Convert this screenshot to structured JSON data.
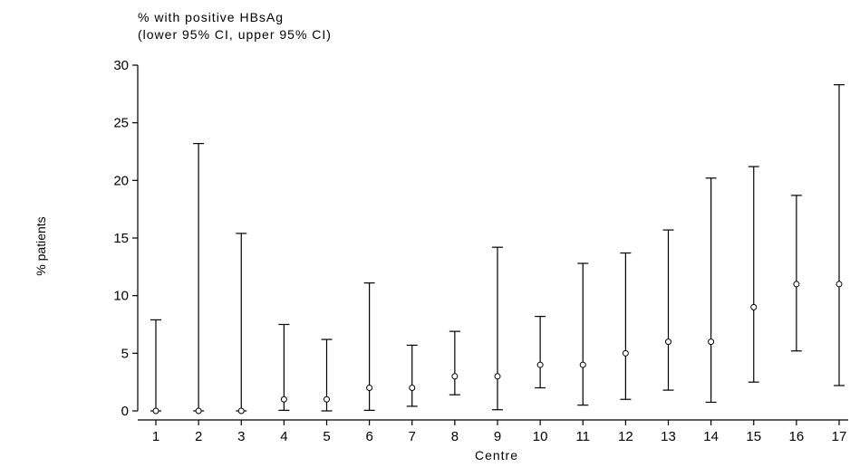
{
  "chart_data": {
    "type": "scatter",
    "title_lines": [
      "% with positive HBsAg",
      "(lower 95% CI, upper 95% CI)"
    ],
    "xlabel": "Centre",
    "ylabel": "% patients",
    "ylim": [
      0,
      30
    ],
    "y_ticks": [
      0,
      5,
      10,
      15,
      20,
      25,
      30
    ],
    "y_tick_labels": [
      "0",
      "5",
      "10",
      "15",
      "20",
      "25",
      "30"
    ],
    "grid": false,
    "series": [
      {
        "name": "",
        "marker": "open-circle",
        "x": [
          "1",
          "2",
          "3",
          "4",
          "5",
          "6",
          "7",
          "8",
          "9",
          "10",
          "11",
          "12",
          "13",
          "14",
          "15",
          "16",
          "17"
        ],
        "values": [
          0,
          0,
          0,
          1,
          1,
          2,
          2,
          3,
          3,
          4,
          4,
          5,
          6,
          6,
          9,
          11,
          11
        ],
        "lower": [
          0,
          0,
          0,
          0.05,
          0,
          0.05,
          0.4,
          1.4,
          0.1,
          2.0,
          0.5,
          1.0,
          1.8,
          0.75,
          2.5,
          5.2,
          2.2
        ],
        "upper": [
          7.9,
          23.2,
          15.4,
          7.5,
          6.2,
          11.1,
          5.7,
          6.9,
          14.2,
          8.2,
          12.8,
          13.7,
          15.7,
          20.2,
          21.2,
          18.7,
          28.3
        ]
      }
    ]
  }
}
